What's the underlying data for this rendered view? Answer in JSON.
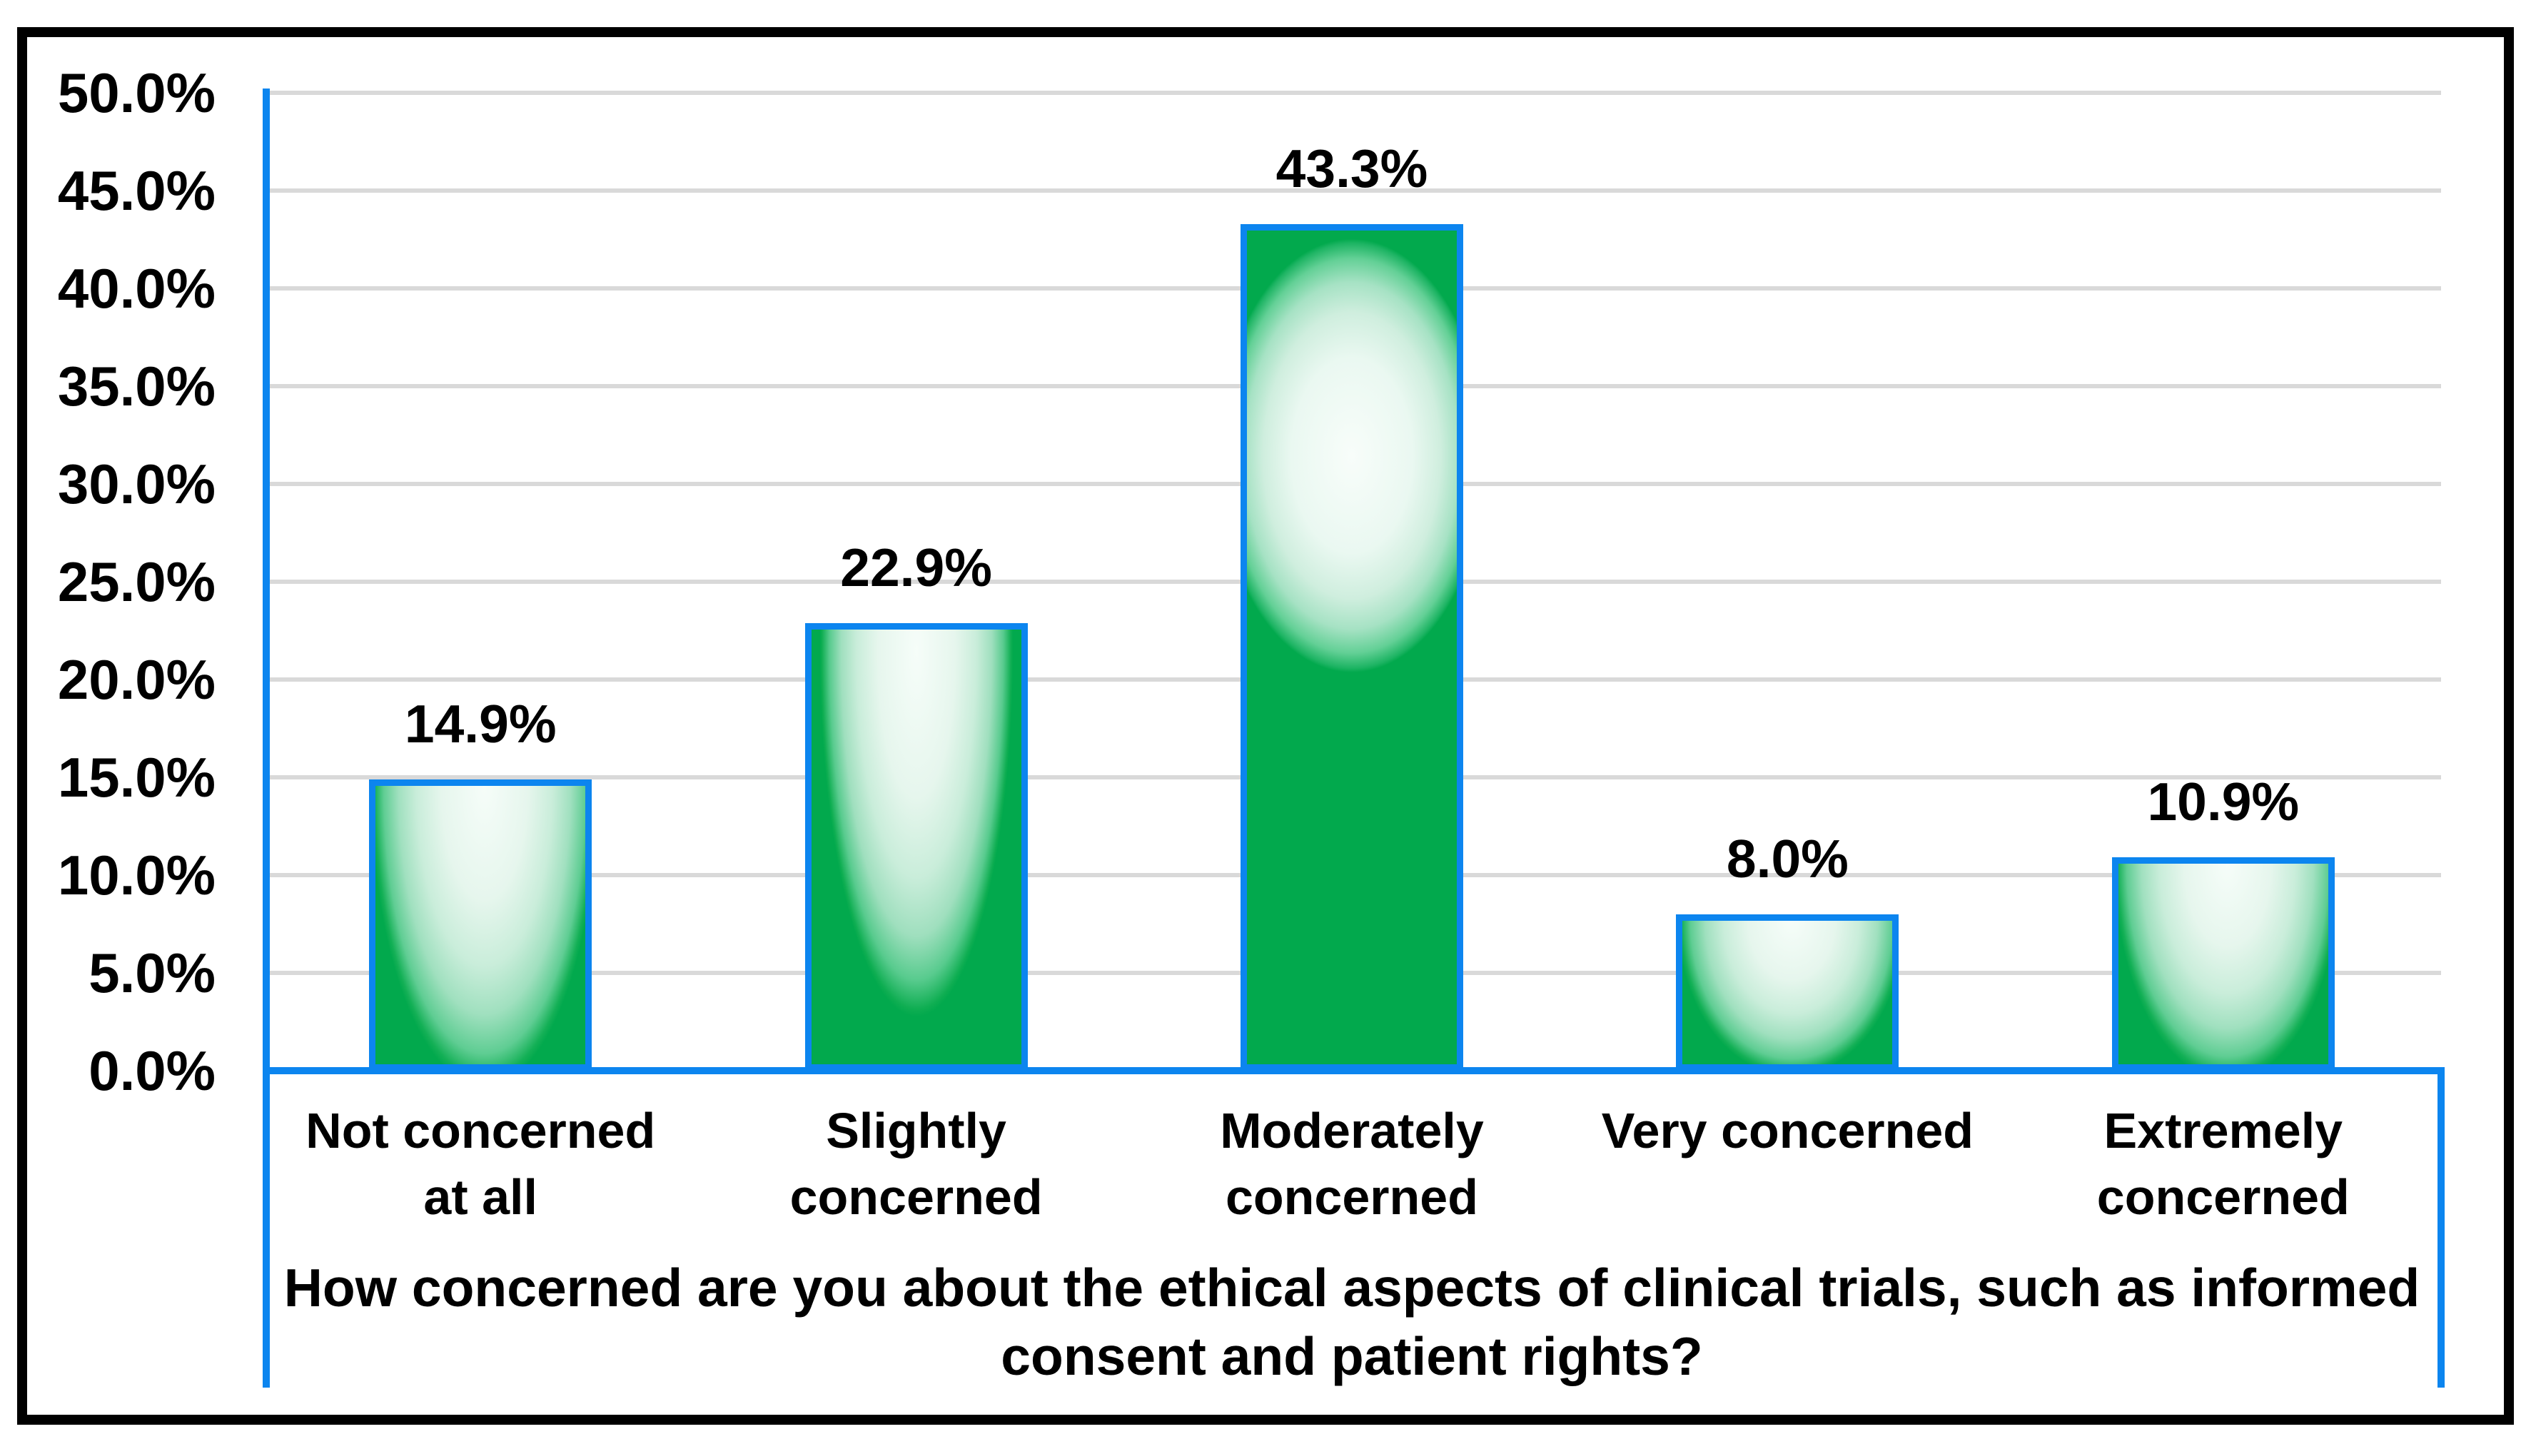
{
  "chart_data": {
    "type": "bar",
    "categories": [
      "Not concerned at all",
      "Slightly concerned",
      "Moderately concerned",
      "Very concerned",
      "Extremely concerned"
    ],
    "category_lines": [
      [
        "Not concerned",
        "at all"
      ],
      [
        "Slightly",
        "concerned"
      ],
      [
        "Moderately",
        "concerned"
      ],
      [
        "Very concerned"
      ],
      [
        "Extremely",
        "concerned"
      ]
    ],
    "values": [
      14.9,
      22.9,
      43.3,
      8.0,
      10.9
    ],
    "data_labels": [
      "14.9%",
      "22.9%",
      "43.3%",
      "8.0%",
      "10.9%"
    ],
    "title": "",
    "xlabel": "How concerned are you about the ethical aspects of clinical trials, such as informed consent and patient rights?",
    "xlabel_lines": [
      "How concerned are you about the ethical aspects of clinical trials, such as informed",
      "consent and patient rights?"
    ],
    "ylabel": "",
    "ylim": [
      0,
      50
    ],
    "ytick_step": 5,
    "ytick_labels": [
      "0.0%",
      "5.0%",
      "10.0%",
      "15.0%",
      "20.0%",
      "25.0%",
      "30.0%",
      "35.0%",
      "40.0%",
      "45.0%",
      "50.0%"
    ],
    "grid": true,
    "legend": false
  },
  "colors": {
    "bar_border": "#0c85ef",
    "axis_line": "#0c85ef",
    "gridline": "#d9d9d9",
    "bar_fill_dark": "#02a94d",
    "bar_fill_light": "#f6fdf9",
    "text": "#000000",
    "chart_border": "#000000",
    "background": "#ffffff"
  }
}
